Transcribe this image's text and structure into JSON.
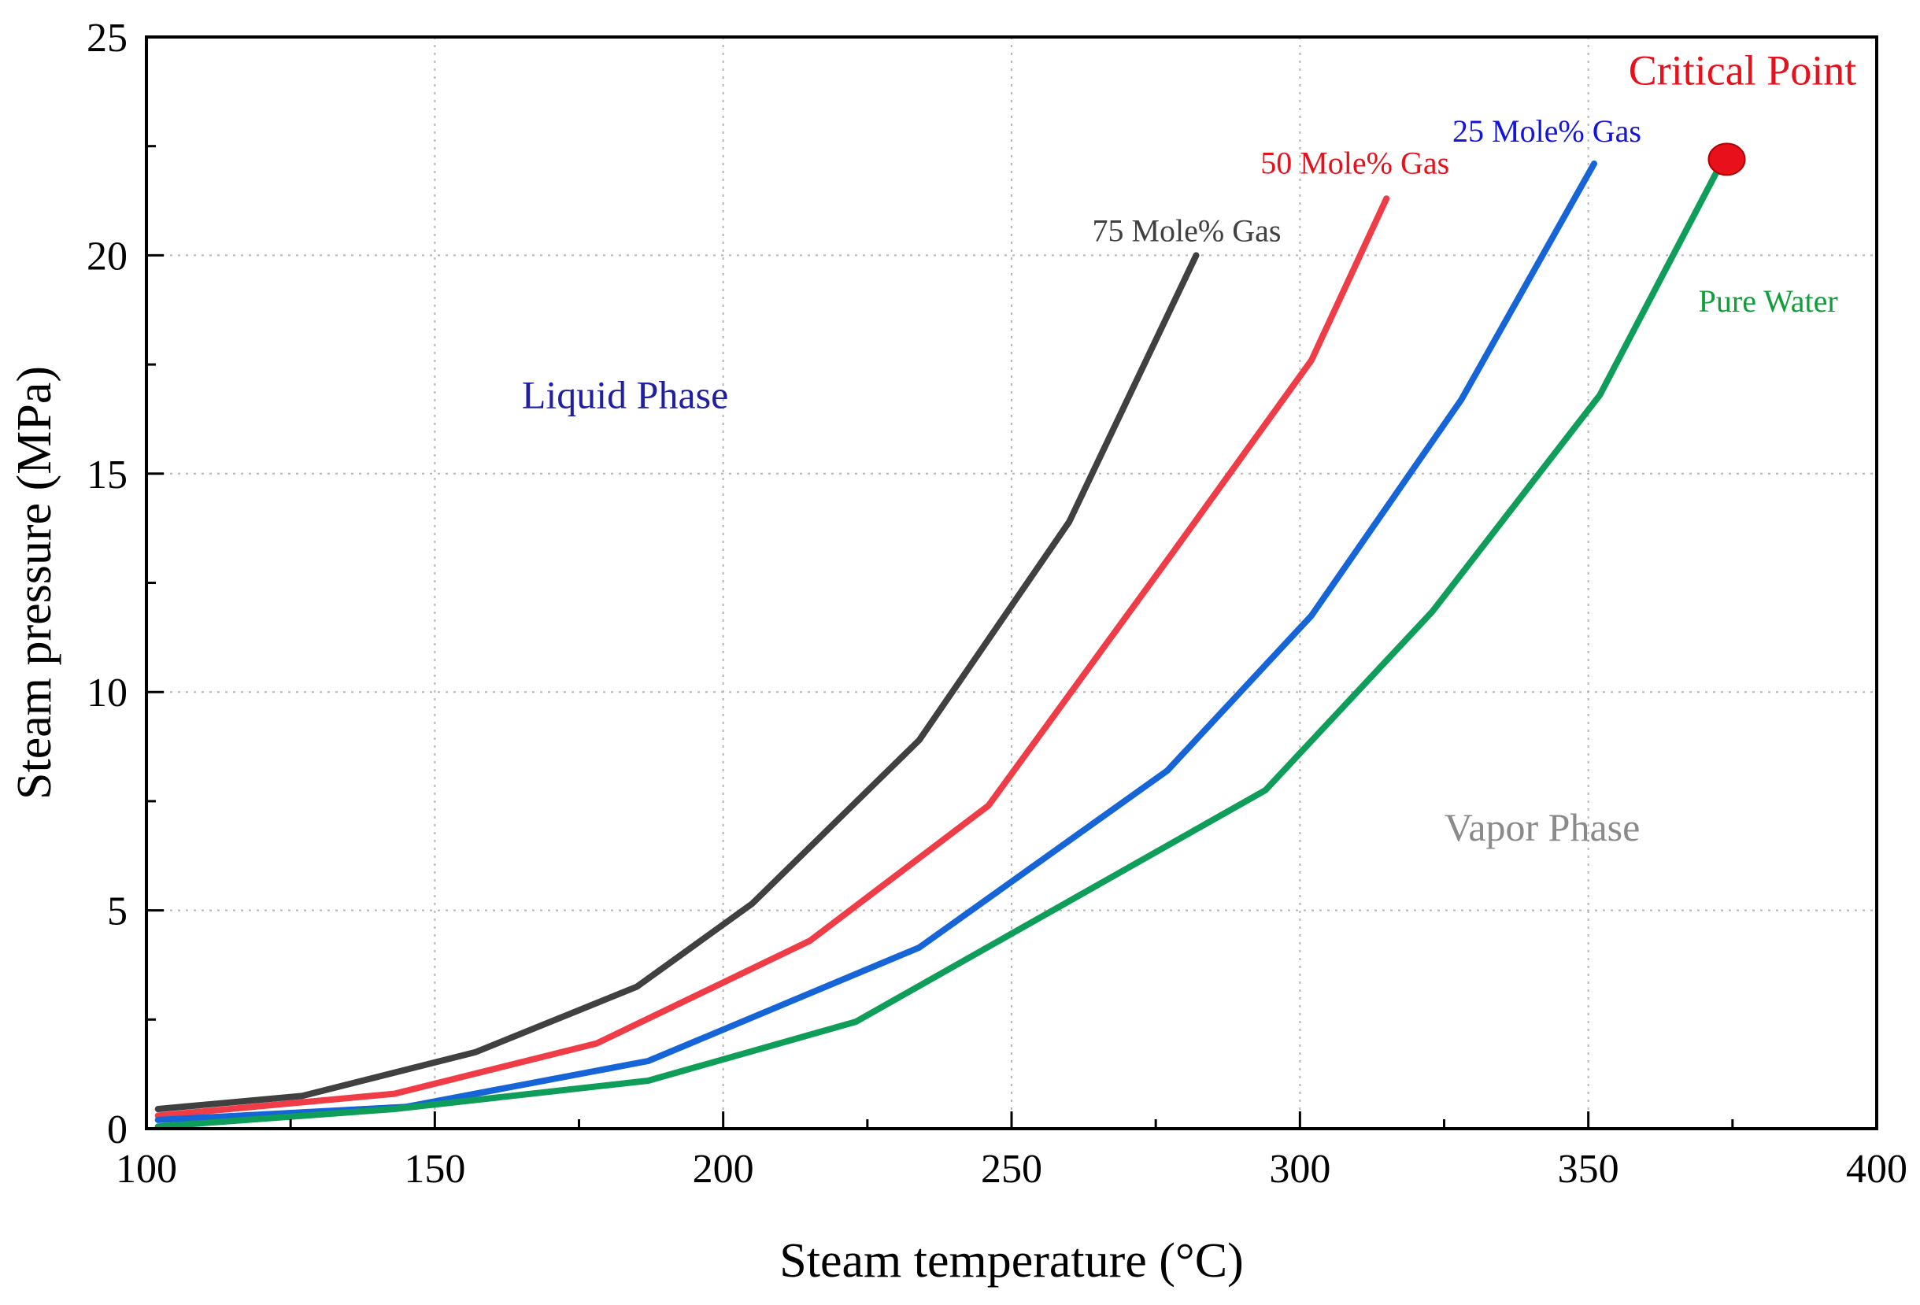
{
  "chart_data": {
    "type": "line",
    "title": "",
    "xlabel": "Steam temperature (°C)",
    "ylabel": "Steam pressure (MPa)",
    "xlim": [
      100,
      400
    ],
    "ylim": [
      0,
      25
    ],
    "xticks": [
      100,
      150,
      200,
      250,
      300,
      350,
      400
    ],
    "yticks": [
      0,
      5,
      10,
      15,
      20,
      25
    ],
    "grid": true,
    "series": [
      {
        "name": "75 Mole% Gas",
        "color": "#404040",
        "x": [
          102,
          127,
          157,
          185,
          205,
          234,
          260,
          282
        ],
        "y": [
          0.45,
          0.75,
          1.75,
          3.25,
          5.15,
          8.9,
          13.9,
          20.0
        ]
      },
      {
        "name": "50 Mole% Gas",
        "color": "#f03c46",
        "x": [
          102,
          143,
          178,
          215,
          246,
          278,
          302,
          315
        ],
        "y": [
          0.3,
          0.8,
          1.95,
          4.3,
          7.4,
          13.2,
          17.6,
          21.3
        ]
      },
      {
        "name": "25 Mole% Gas",
        "color": "#1565d8",
        "x": [
          102,
          145,
          187,
          234,
          277,
          302,
          328,
          351
        ],
        "y": [
          0.2,
          0.5,
          1.55,
          4.15,
          8.2,
          11.75,
          16.7,
          22.1
        ]
      },
      {
        "name": "Pure Water",
        "color": "#0f9e5a",
        "x": [
          102,
          143,
          187,
          223,
          294,
          323,
          352,
          373
        ],
        "y": [
          0.05,
          0.45,
          1.1,
          2.45,
          7.75,
          11.85,
          16.8,
          22.1
        ]
      }
    ],
    "annotations": {
      "critical_point": {
        "label": "Critical Point",
        "x": 374,
        "y": 22.2,
        "color": "#e8101b"
      },
      "liquid_phase": {
        "label": "Liquid Phase",
        "x": 183,
        "y": 16.5,
        "color": "#1f1fa0"
      },
      "vapor_phase": {
        "label": "Vapor Phase",
        "x": 342,
        "y": 6.6,
        "color": "#8a8a8a"
      }
    },
    "series_label_colors": {
      "75 Mole% Gas": "#404040",
      "50 Mole% Gas": "#e8101b",
      "25 Mole% Gas": "#1414e0",
      "Pure Water": "#0f9e3a"
    }
  }
}
